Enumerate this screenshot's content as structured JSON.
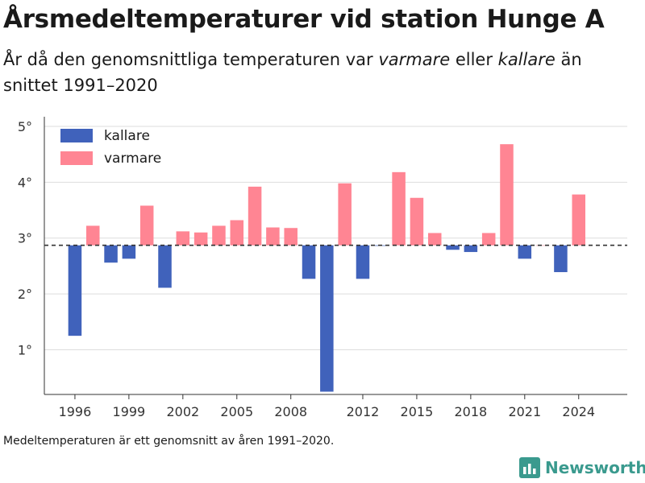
{
  "header": {
    "title": "Årsmedeltemperaturer vid station Hunge A",
    "subtitle_part1": "År då den genomsnittliga temperaturen var ",
    "subtitle_em1": "varmare",
    "subtitle_part2": " eller ",
    "subtitle_em2": "kallare",
    "subtitle_part3": " än snittet 1991–2020"
  },
  "footnote": "Medeltemperaturen är ett genomsnitt av åren 1991–2020.",
  "brand": {
    "name": "Newsworthy"
  },
  "colors": {
    "kallare": "#4062bb",
    "varmare": "#ff8593",
    "reference": "#333333",
    "grid": "#dddddd",
    "brand": "#3a9a8e"
  },
  "chart_data": {
    "type": "bar",
    "reference_value": 2.87,
    "ylim": [
      0.2,
      5.1
    ],
    "yticks": [
      1,
      2,
      3,
      4,
      5
    ],
    "ytick_labels": [
      "1°",
      "2°",
      "3°",
      "4°",
      "5°"
    ],
    "xlim": [
      1994.3,
      2026.7
    ],
    "xticks": [
      1996,
      1999,
      2002,
      2005,
      2008,
      2012,
      2015,
      2018,
      2021,
      2024
    ],
    "xtick_labels": [
      "1996",
      "1999",
      "2002",
      "2005",
      "2008",
      "2012",
      "2015",
      "2018",
      "2021",
      "2024"
    ],
    "legend": {
      "placement": "top-left",
      "items": [
        {
          "key": "kallare",
          "label": "kallare"
        },
        {
          "key": "varmare",
          "label": "varmare"
        }
      ]
    },
    "grid": true,
    "series": [
      {
        "x": [
          1996,
          1997,
          1998,
          1999,
          2000,
          2001,
          2002,
          2003,
          2004,
          2005,
          2006,
          2007,
          2008,
          2009,
          2010,
          2011,
          2012,
          2013,
          2014,
          2015,
          2016,
          2017,
          2018,
          2019,
          2020,
          2021,
          2022,
          2023,
          2024
        ],
        "values": [
          1.25,
          3.22,
          2.56,
          2.63,
          3.58,
          2.11,
          3.12,
          3.1,
          3.22,
          3.32,
          3.92,
          3.19,
          3.18,
          2.27,
          0.25,
          3.98,
          2.27,
          2.86,
          4.18,
          3.72,
          3.09,
          2.79,
          2.75,
          3.09,
          4.68,
          2.63,
          2.87,
          2.39,
          3.78
        ]
      }
    ]
  }
}
